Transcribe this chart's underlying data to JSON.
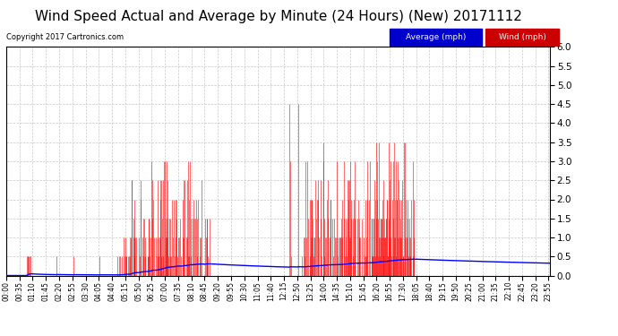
{
  "title": "Wind Speed Actual and Average by Minute (24 Hours) (New) 20171112",
  "copyright": "Copyright 2017 Cartronics.com",
  "legend_avg_label": "Average (mph)",
  "legend_wind_label": "Wind (mph)",
  "ylim": [
    0.0,
    6.0
  ],
  "yticks": [
    0.0,
    0.5,
    1.0,
    1.5,
    2.0,
    2.5,
    3.0,
    3.5,
    4.0,
    4.5,
    5.0,
    5.5,
    6.0
  ],
  "bg_color": "#ffffff",
  "grid_color": "#c8c8c8",
  "wind_color": "#ff0000",
  "avg_color": "#0000ff",
  "title_fontsize": 11,
  "copyright_fontsize": 6,
  "tick_fontsize": 5.5,
  "ytick_fontsize": 7.5,
  "n_minutes": 1440,
  "x_tick_interval": 35,
  "x_tick_labels": [
    "00:00",
    "00:35",
    "01:10",
    "01:45",
    "02:20",
    "02:55",
    "03:30",
    "04:05",
    "04:40",
    "05:15",
    "05:50",
    "06:25",
    "07:00",
    "07:35",
    "08:10",
    "08:45",
    "09:20",
    "09:55",
    "10:30",
    "11:05",
    "11:40",
    "12:15",
    "12:50",
    "13:25",
    "14:00",
    "14:35",
    "15:10",
    "15:45",
    "16:20",
    "16:55",
    "17:30",
    "18:05",
    "18:40",
    "19:15",
    "19:50",
    "20:25",
    "21:00",
    "21:35",
    "22:10",
    "22:45",
    "23:20",
    "23:55"
  ]
}
